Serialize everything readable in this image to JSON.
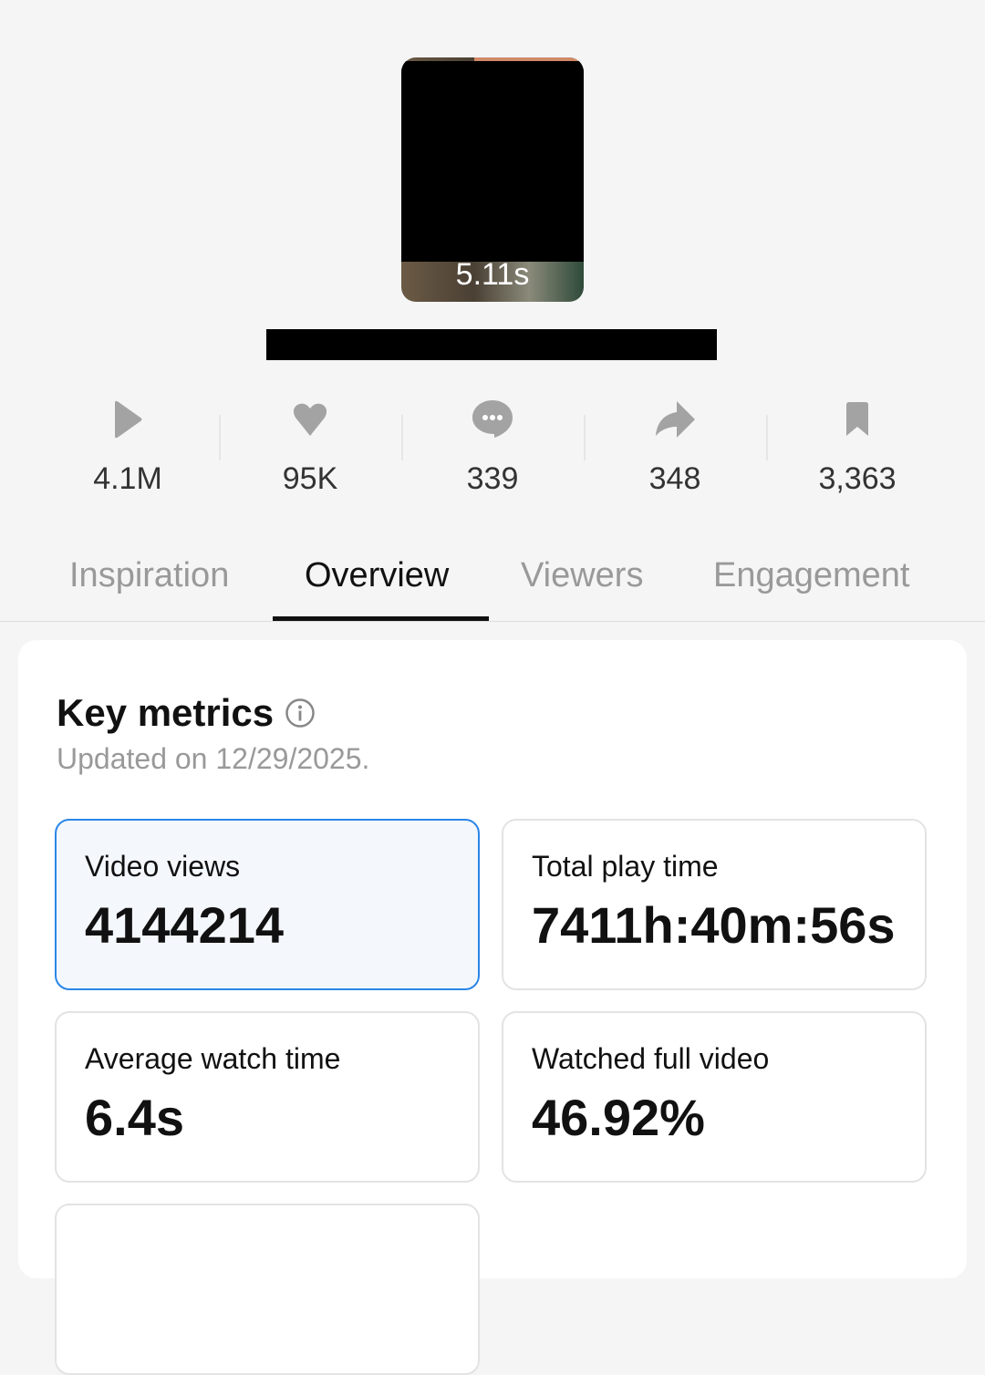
{
  "video": {
    "duration": "5.11s"
  },
  "stats": [
    {
      "icon": "play-icon",
      "value": "4.1M"
    },
    {
      "icon": "heart-icon",
      "value": "95K"
    },
    {
      "icon": "comment-icon",
      "value": "339"
    },
    {
      "icon": "share-icon",
      "value": "348"
    },
    {
      "icon": "bookmark-icon",
      "value": "3,363"
    }
  ],
  "tabs": [
    {
      "label": "Inspiration",
      "active": false
    },
    {
      "label": "Overview",
      "active": true
    },
    {
      "label": "Viewers",
      "active": false
    },
    {
      "label": "Engagement",
      "active": false
    }
  ],
  "key_metrics": {
    "title": "Key metrics",
    "updated": "Updated on 12/29/2025.",
    "metrics": [
      {
        "label": "Video views",
        "value": "4144214",
        "selected": true
      },
      {
        "label": "Total play time",
        "value": "7411h:40m:56s",
        "selected": false
      },
      {
        "label": "Average watch time",
        "value": "6.4s",
        "selected": false
      },
      {
        "label": "Watched full video",
        "value": "46.92%",
        "selected": false
      }
    ]
  },
  "colors": {
    "accent": "#2a86e8",
    "icon": "#a3a3a3"
  }
}
